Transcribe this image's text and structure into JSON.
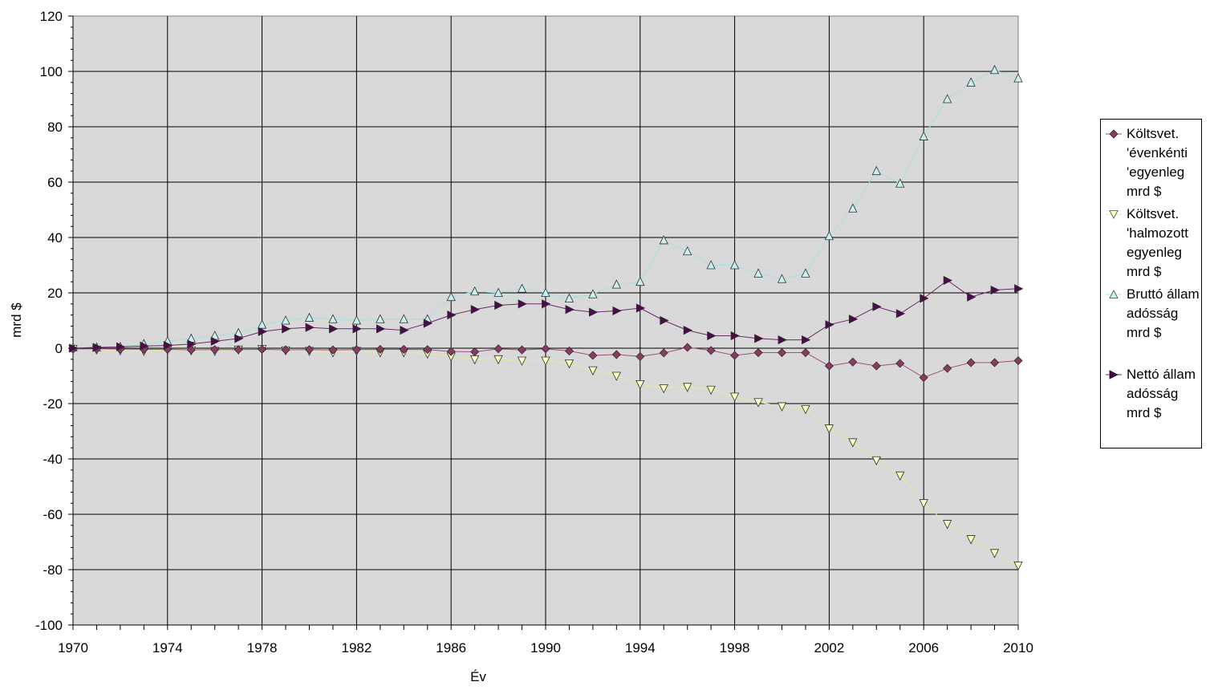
{
  "chart_data": {
    "type": "line",
    "title": "",
    "xlabel": "Év",
    "ylabel": "mrd $",
    "xlim": [
      1970,
      2010
    ],
    "ylim": [
      -100,
      120
    ],
    "x_ticks": [
      "1970",
      "1974",
      "1978",
      "1982",
      "1986",
      "1990",
      "1994",
      "1998",
      "2002",
      "2006",
      "2010"
    ],
    "y_ticks": [
      "120",
      "100",
      "80",
      "60",
      "40",
      "20",
      "0",
      "-20",
      "-40",
      "-60",
      "-80",
      "-100"
    ],
    "grid": true,
    "legend_position": "right",
    "plot_background": "#d9d9d9",
    "x": [
      1970,
      1971,
      1972,
      1973,
      1974,
      1975,
      1976,
      1977,
      1978,
      1979,
      1980,
      1981,
      1982,
      1983,
      1984,
      1985,
      1986,
      1987,
      1988,
      1989,
      1990,
      1991,
      1992,
      1993,
      1994,
      1995,
      1996,
      1997,
      1998,
      1999,
      2000,
      2001,
      2002,
      2003,
      2004,
      2005,
      2006,
      2007,
      2008,
      2009,
      2010
    ],
    "series": [
      {
        "name": "Költsvet. 'évenkénti 'egyenleg mrd $",
        "marker": "diamond",
        "color": "#8b3a62",
        "line_color": "#a0507a",
        "values": [
          -0.3,
          -0.2,
          -0.3,
          -0.4,
          -0.4,
          -0.6,
          -0.5,
          -0.5,
          -0.4,
          -0.6,
          -0.5,
          -0.6,
          -0.5,
          -0.4,
          -0.4,
          -0.5,
          -1.2,
          -1.3,
          -0.2,
          -0.6,
          -0.2,
          -1.0,
          -2.6,
          -2.3,
          -3.0,
          -1.7,
          0.3,
          -0.8,
          -2.6,
          -1.6,
          -1.6,
          -1.6,
          -6.4,
          -5.0,
          -6.4,
          -5.5,
          -10.6,
          -7.3,
          -5.2,
          -5.2,
          -4.5
        ]
      },
      {
        "name": "Költsvet. 'halmozott egyenleg mrd $",
        "marker": "triangle-down",
        "color": "#ffffc0",
        "line_color": "#e8e8a0",
        "values": [
          -0.3,
          -0.5,
          -0.8,
          -1.0,
          -0.5,
          -0.8,
          -1.0,
          -0.5,
          -0.3,
          -0.8,
          -1.0,
          -1.5,
          -1.0,
          -1.5,
          -1.5,
          -2.0,
          -3.0,
          -4.0,
          -4.0,
          -4.5,
          -4.5,
          -5.5,
          -8.0,
          -10.0,
          -13.0,
          -14.5,
          -14.0,
          -15.0,
          -17.5,
          -19.5,
          -21.0,
          -22.0,
          -29.0,
          -34.0,
          -40.5,
          -46.0,
          -56.0,
          -63.5,
          -69.0,
          -74.0,
          -78.5
        ]
      },
      {
        "name": "Bruttó állam adósság mrd $",
        "marker": "triangle-up",
        "color": "#c8f0f0",
        "line_color": "#a8e0e0",
        "values": [
          0.3,
          0.3,
          0.5,
          1.5,
          2.5,
          3.5,
          4.5,
          5.5,
          8.5,
          10.0,
          11.0,
          10.5,
          10.0,
          10.5,
          10.5,
          10.5,
          18.5,
          20.5,
          20.0,
          21.5,
          20.0,
          18.0,
          19.5,
          23.0,
          24.0,
          39.0,
          35.0,
          30.0,
          30.0,
          27.0,
          25.0,
          27.0,
          40.5,
          50.5,
          64.0,
          59.5,
          76.5,
          90.0,
          96.0,
          100.5,
          97.5
        ]
      },
      {
        "name": "Nettó állam adósság mrd $",
        "marker": "triangle-right",
        "color": "#4b0a4b",
        "line_color": "#6a2a6a",
        "values": [
          0.0,
          0.3,
          0.5,
          0.8,
          1.0,
          1.5,
          2.5,
          3.5,
          6.0,
          7.0,
          7.5,
          7.0,
          7.0,
          7.0,
          6.5,
          9.0,
          12.0,
          14.0,
          15.5,
          16.0,
          16.0,
          14.0,
          13.0,
          13.5,
          14.5,
          10.0,
          6.5,
          4.5,
          4.5,
          3.5,
          3.0,
          3.0,
          8.5,
          10.5,
          15.0,
          12.5,
          18.0,
          24.5,
          18.5,
          21.0,
          21.5
        ]
      }
    ]
  }
}
